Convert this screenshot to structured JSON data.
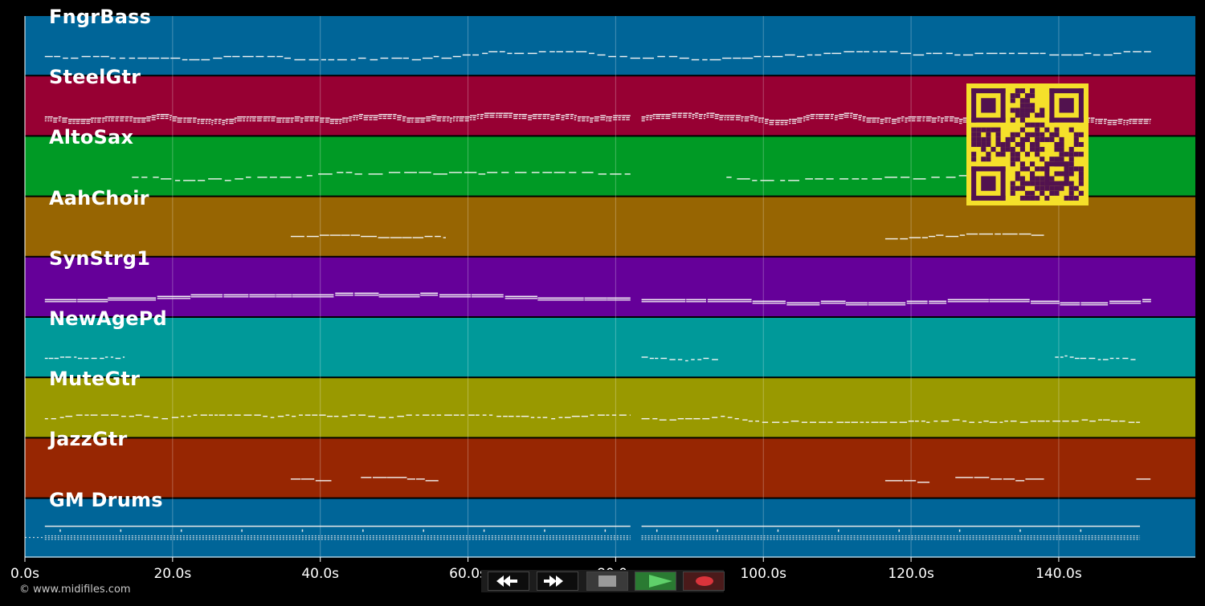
{
  "tracks": [
    {
      "name": "FngrBass",
      "color": "#006598"
    },
    {
      "name": "SteelGtr",
      "color": "#970033"
    },
    {
      "name": "AltoSax",
      "color": "#009a25"
    },
    {
      "name": "AahChoir",
      "color": "#976502"
    },
    {
      "name": "SynStrg1",
      "color": "#650099"
    },
    {
      "name": "NewAgePd",
      "color": "#009999"
    },
    {
      "name": "MuteGtr",
      "color": "#999900"
    },
    {
      "name": "JazzGtr",
      "color": "#972602"
    },
    {
      "name": "GM Drums",
      "color": "#006598"
    }
  ],
  "timeline": {
    "ticks": [
      "0.0s",
      "20.0s",
      "40.0s",
      "60.0s",
      "80.0s",
      "100.0s",
      "120.0s",
      "140.0s"
    ],
    "tick_seconds": [
      0,
      20,
      40,
      60,
      80,
      100,
      120,
      140
    ],
    "max_seconds": 158.5
  },
  "copyright": "© www.midifiles.com",
  "transport": {
    "rewind_icon": "rewind-icon",
    "forward_icon": "fast-forward-icon",
    "stop_icon": "stop-icon",
    "play_icon": "play-icon",
    "record_icon": "record-icon",
    "play_color": "#5fd16a",
    "record_color": "#d9343b"
  },
  "qr_colors": {
    "background": "#f5e02a",
    "modules": "#52124f"
  }
}
